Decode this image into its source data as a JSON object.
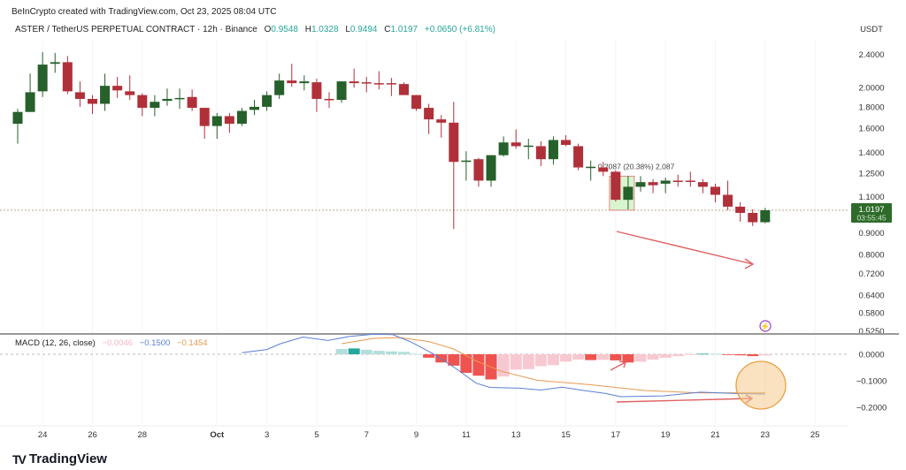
{
  "header": {
    "credit": "BeInCrypto created with TradingView.com, Oct 23, 2025 08:04 UTC",
    "symbol": "ASTER / TetherUS PERPETUAL CONTRACT · 12h · Binance",
    "o_label": "O",
    "o": "0.9548",
    "h_label": "H",
    "h": "1.0328",
    "l_label": "L",
    "l": "0.9494",
    "c_label": "C",
    "c": "1.0197",
    "change": "+0.0650 (+6.81%)"
  },
  "currency": "USDT",
  "current_price": "1.0197",
  "countdown": "03:55:45",
  "measure_label": "0.2087 (20.38%) 2,087",
  "macd": {
    "label": "MACD (12, 26, close)",
    "hist": "−0.0046",
    "macd": "−0.1500",
    "signal": "−0.1454"
  },
  "brand": "TradingView",
  "colors": {
    "up": "#26602a",
    "down": "#b0303a",
    "macd": "#5b7fd6",
    "signal": "#e69a4c",
    "hist_up_strong": "#26a69a",
    "hist_up_weak": "#b2dfdb",
    "hist_down_strong": "#ef5350",
    "hist_down_weak": "#f8c8d0",
    "price_tag": "#2e6b2a"
  },
  "chart_data": {
    "type": "candlestick",
    "title": "ASTER / TetherUS PERPETUAL CONTRACT · 12h · Binance",
    "scale": "log",
    "ylim": [
      0.525,
      2.4
    ],
    "y_ticks": [
      "2.4000",
      "2.0000",
      "1.8000",
      "1.6000",
      "1.4000",
      "1.2500",
      "1.1000",
      "0.9000",
      "0.8000",
      "0.7200",
      "0.6400",
      "0.5800",
      "0.5250"
    ],
    "x_ticks": [
      {
        "label": "24",
        "i": 3
      },
      {
        "label": "26",
        "i": 7
      },
      {
        "label": "28",
        "i": 11
      },
      {
        "label": "Oct",
        "i": 17
      },
      {
        "label": "3",
        "i": 21
      },
      {
        "label": "5",
        "i": 25
      },
      {
        "label": "7",
        "i": 29
      },
      {
        "label": "9",
        "i": 33
      },
      {
        "label": "11",
        "i": 37
      },
      {
        "label": "13",
        "i": 41
      },
      {
        "label": "15",
        "i": 45
      },
      {
        "label": "17",
        "i": 49
      },
      {
        "label": "19",
        "i": 53
      },
      {
        "label": "21",
        "i": 57
      },
      {
        "label": "23",
        "i": 61
      },
      {
        "label": "25",
        "i": 65
      }
    ],
    "ohlc": [
      [
        1.64,
        1.78,
        1.47,
        1.75
      ],
      [
        1.75,
        2.16,
        1.75,
        1.95
      ],
      [
        1.96,
        2.43,
        1.9,
        2.27
      ],
      [
        2.28,
        2.42,
        2.17,
        2.3
      ],
      [
        2.3,
        2.38,
        1.93,
        1.96
      ],
      [
        1.95,
        2.07,
        1.8,
        1.88
      ],
      [
        1.88,
        1.92,
        1.73,
        1.83
      ],
      [
        1.83,
        2.16,
        1.76,
        2.02
      ],
      [
        2.02,
        2.12,
        1.89,
        1.97
      ],
      [
        1.96,
        2.14,
        1.87,
        1.92
      ],
      [
        1.92,
        1.94,
        1.71,
        1.79
      ],
      [
        1.79,
        1.92,
        1.71,
        1.85
      ],
      [
        1.86,
        1.99,
        1.81,
        1.88
      ],
      [
        1.88,
        1.99,
        1.78,
        1.89
      ],
      [
        1.9,
        1.98,
        1.76,
        1.79
      ],
      [
        1.79,
        1.79,
        1.51,
        1.62
      ],
      [
        1.62,
        1.74,
        1.51,
        1.71
      ],
      [
        1.71,
        1.74,
        1.56,
        1.64
      ],
      [
        1.64,
        1.79,
        1.62,
        1.76
      ],
      [
        1.77,
        1.87,
        1.72,
        1.8
      ],
      [
        1.8,
        1.96,
        1.76,
        1.92
      ],
      [
        1.92,
        2.16,
        1.88,
        2.08
      ],
      [
        2.08,
        2.28,
        2.01,
        2.05
      ],
      [
        2.05,
        2.14,
        1.97,
        2.07
      ],
      [
        2.06,
        2.1,
        1.75,
        1.88
      ],
      [
        1.88,
        1.95,
        1.79,
        1.87
      ],
      [
        1.87,
        2.07,
        1.84,
        2.07
      ],
      [
        2.07,
        2.22,
        2.0,
        2.05
      ],
      [
        2.06,
        2.12,
        1.95,
        2.05
      ],
      [
        2.05,
        2.19,
        1.98,
        2.04
      ],
      [
        2.05,
        2.11,
        1.91,
        2.04
      ],
      [
        2.04,
        2.06,
        1.92,
        1.92
      ],
      [
        1.92,
        1.92,
        1.76,
        1.78
      ],
      [
        1.79,
        1.83,
        1.55,
        1.68
      ],
      [
        1.68,
        1.72,
        1.52,
        1.65
      ],
      [
        1.65,
        1.85,
        0.92,
        1.33
      ],
      [
        1.33,
        1.41,
        1.2,
        1.34
      ],
      [
        1.35,
        1.36,
        1.16,
        1.2
      ],
      [
        1.2,
        1.38,
        1.16,
        1.38
      ],
      [
        1.38,
        1.53,
        1.37,
        1.48
      ],
      [
        1.48,
        1.59,
        1.43,
        1.45
      ],
      [
        1.45,
        1.51,
        1.35,
        1.455
      ],
      [
        1.45,
        1.49,
        1.3,
        1.35
      ],
      [
        1.35,
        1.53,
        1.31,
        1.5
      ],
      [
        1.5,
        1.54,
        1.45,
        1.46
      ],
      [
        1.45,
        1.47,
        1.27,
        1.29
      ],
      [
        1.29,
        1.34,
        1.2,
        1.295
      ],
      [
        1.29,
        1.33,
        1.23,
        1.26
      ],
      [
        1.26,
        1.27,
        1.07,
        1.08
      ],
      [
        1.08,
        1.23,
        1.025,
        1.16
      ],
      [
        1.16,
        1.23,
        1.13,
        1.19
      ],
      [
        1.19,
        1.21,
        1.12,
        1.17
      ],
      [
        1.18,
        1.22,
        1.12,
        1.2
      ],
      [
        1.2,
        1.24,
        1.16,
        1.198
      ],
      [
        1.2,
        1.26,
        1.16,
        1.198
      ],
      [
        1.19,
        1.21,
        1.12,
        1.16
      ],
      [
        1.16,
        1.18,
        1.065,
        1.11
      ],
      [
        1.11,
        1.2,
        1.02,
        1.04
      ],
      [
        1.04,
        1.065,
        0.957,
        1.005
      ],
      [
        1.005,
        1.025,
        0.935,
        0.9548
      ],
      [
        0.9548,
        1.0328,
        0.9494,
        1.0197
      ]
    ],
    "measure": {
      "from_i": 49,
      "to_i": 50,
      "low": 1.02,
      "high": 1.23,
      "change": 0.2087,
      "percent": 20.38
    },
    "macd_panel": {
      "ylim": [
        -0.25,
        0.08
      ],
      "y_ticks": [
        "0.0000",
        "−0.1000",
        "−0.2000"
      ],
      "y_tick_values": [
        0,
        -0.1,
        -0.2
      ],
      "hist_start_i": 27,
      "histogram": [
        0.02,
        0.022,
        0.017,
        0.013,
        0.011,
        0.009,
        0.001,
        -0.013,
        -0.031,
        -0.043,
        -0.07,
        -0.081,
        -0.095,
        -0.084,
        -0.058,
        -0.056,
        -0.045,
        -0.041,
        -0.028,
        -0.02,
        -0.022,
        -0.021,
        -0.023,
        -0.031,
        -0.028,
        -0.02,
        -0.013,
        -0.007,
        -0.002,
        0.002,
        0.002,
        -0.002,
        -0.004,
        -0.007,
        -0.0046
      ],
      "macd_line": [
        [
          19,
          0.006
        ],
        [
          21,
          0.018
        ],
        [
          22.1,
          0.04
        ],
        [
          23.9,
          0.065
        ],
        [
          25.9,
          0.052
        ],
        [
          27.6,
          0.067
        ],
        [
          29.6,
          0.076
        ],
        [
          31.1,
          0.074
        ],
        [
          32.5,
          0.048
        ],
        [
          34.3,
          0.003
        ],
        [
          36,
          -0.048
        ],
        [
          37.8,
          -0.109
        ],
        [
          38.9,
          -0.125
        ],
        [
          41.3,
          -0.128
        ],
        [
          43,
          -0.135
        ],
        [
          44.7,
          -0.124
        ],
        [
          46.5,
          -0.137
        ],
        [
          48.2,
          -0.148
        ],
        [
          49.4,
          -0.16
        ],
        [
          52.8,
          -0.157
        ],
        [
          55.8,
          -0.143
        ],
        [
          58.6,
          -0.148
        ],
        [
          61,
          -0.15
        ]
      ],
      "signal_line": [
        [
          27,
          0.04
        ],
        [
          29.6,
          0.06
        ],
        [
          31.7,
          0.063
        ],
        [
          34,
          0.048
        ],
        [
          36,
          0.02
        ],
        [
          37.8,
          -0.025
        ],
        [
          39.8,
          -0.064
        ],
        [
          42.7,
          -0.098
        ],
        [
          47,
          -0.115
        ],
        [
          51.4,
          -0.137
        ],
        [
          55.8,
          -0.146
        ],
        [
          61,
          -0.1454
        ]
      ]
    }
  }
}
